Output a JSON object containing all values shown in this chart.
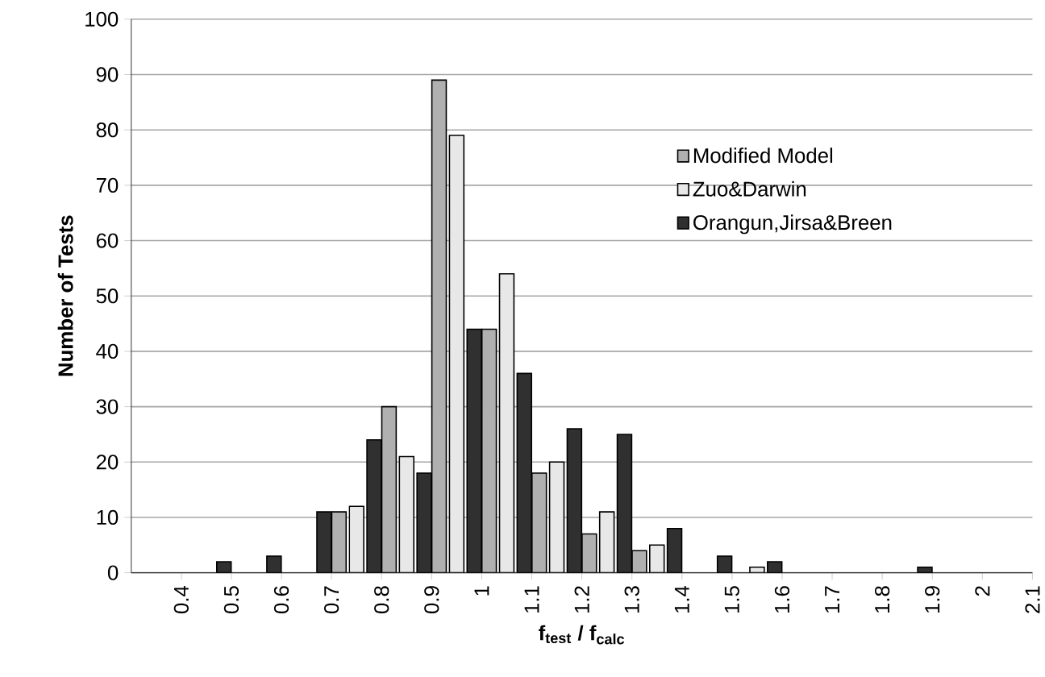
{
  "chart_data": {
    "type": "bar",
    "xlabel": "f$_{test}$ / f$_{calc}$",
    "ylabel": "Number of Tests",
    "x": [
      0.45,
      0.55,
      0.65,
      0.75,
      0.85,
      0.95,
      1.05,
      1.15,
      1.25,
      1.35,
      1.45,
      1.55,
      1.65,
      1.75,
      1.85
    ],
    "series": [
      {
        "name": "Modified Model",
        "color": "#b0b0b0",
        "values": [
          null,
          null,
          null,
          11,
          30,
          89,
          44,
          18,
          7,
          4,
          null,
          null,
          null,
          null,
          null
        ]
      },
      {
        "name": "Zuo&Darwin",
        "color": "#e8e8e8",
        "values": [
          null,
          null,
          null,
          12,
          21,
          79,
          54,
          20,
          11,
          5,
          null,
          1,
          null,
          null,
          null
        ]
      },
      {
        "name": "Orangun,Jirsa&Breen",
        "color": "#303030",
        "values": [
          2,
          3,
          11,
          24,
          18,
          44,
          36,
          26,
          25,
          8,
          3,
          2,
          null,
          null,
          1
        ]
      }
    ],
    "xlim": [
      0.3,
      2.1
    ],
    "xticks": [
      0.4,
      0.5,
      0.6,
      0.7,
      0.8,
      0.9,
      1,
      1.1,
      1.2,
      1.3,
      1.4,
      1.5,
      1.6,
      1.7,
      1.8,
      1.9,
      2,
      2.1
    ],
    "ylim": [
      0,
      100
    ],
    "yticks": [
      0,
      10,
      20,
      30,
      40,
      50,
      60,
      70,
      80,
      90,
      100
    ],
    "grid": "y",
    "legend": "right"
  }
}
